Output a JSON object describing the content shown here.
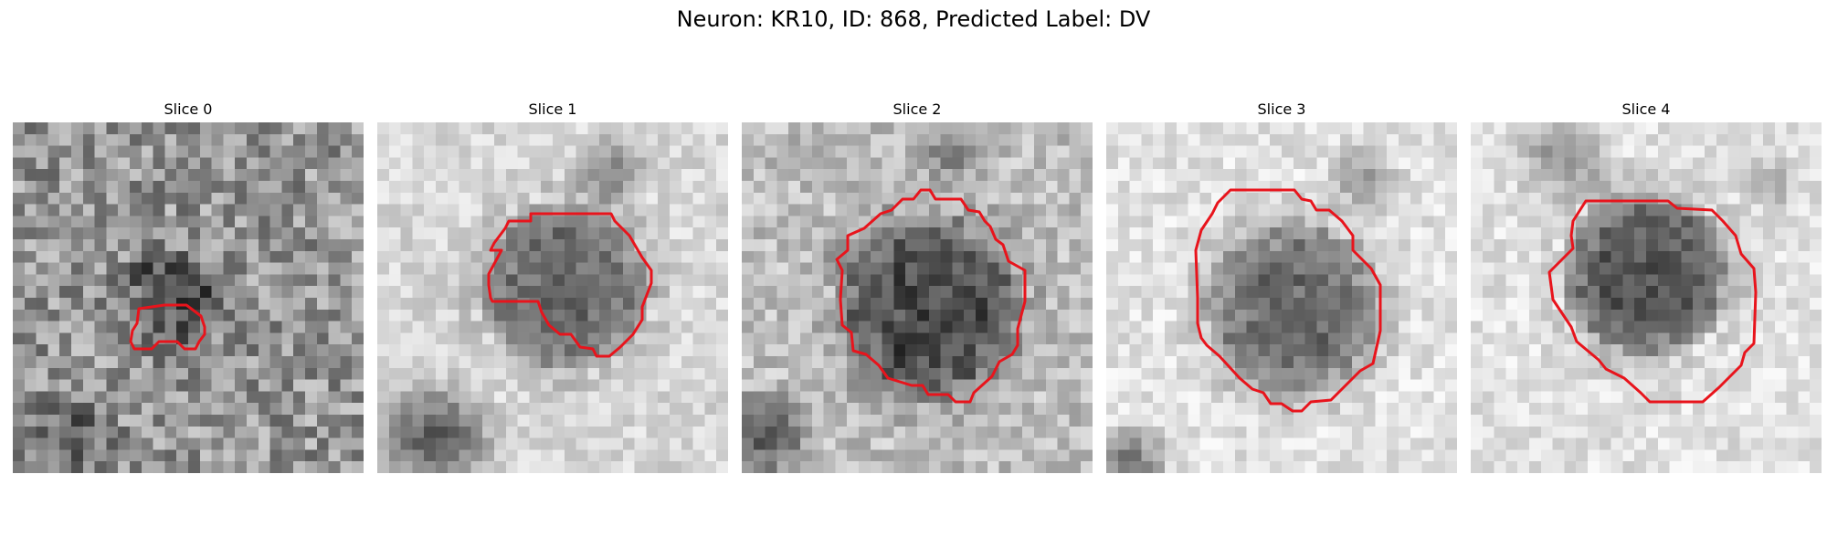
{
  "figure": {
    "title": "Neuron: KR10, ID: 868, Predicted Label: DV"
  },
  "panels": [
    {
      "title": "Slice 0"
    },
    {
      "title": "Slice 1"
    },
    {
      "title": "Slice 2"
    },
    {
      "title": "Slice 3"
    },
    {
      "title": "Slice 4"
    }
  ],
  "colors": {
    "contour": "#e8141c",
    "background": "#ffffff"
  }
}
